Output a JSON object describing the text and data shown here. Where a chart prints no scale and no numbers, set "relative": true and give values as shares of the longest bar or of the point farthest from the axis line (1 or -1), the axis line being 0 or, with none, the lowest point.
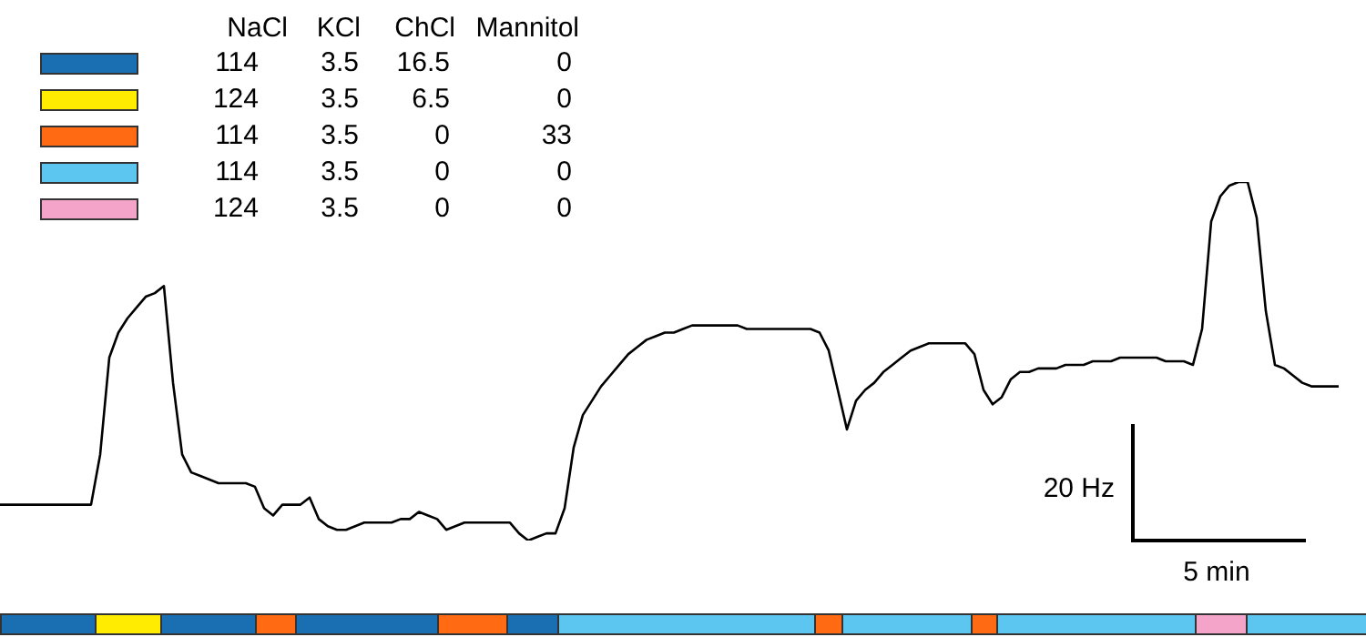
{
  "chart_data": {
    "type": "line",
    "relative": true,
    "categories": [
      null,
      null,
      null,
      null,
      null,
      null,
      null,
      null,
      null,
      null,
      null,
      null,
      null,
      null,
      null,
      null,
      null,
      null,
      null,
      null,
      null,
      null,
      null,
      null,
      null,
      null,
      null,
      null,
      null,
      null,
      null,
      null,
      null,
      null,
      null,
      null,
      null,
      null,
      null,
      null,
      null,
      null,
      null,
      null,
      null,
      null,
      null,
      null,
      null,
      null,
      null,
      null,
      null,
      null,
      null,
      null,
      null,
      null,
      null,
      null,
      null,
      null,
      null,
      null,
      null,
      null,
      null,
      null,
      null,
      null,
      null,
      null,
      null,
      null,
      null,
      null,
      null,
      null,
      null,
      null,
      null,
      null,
      null,
      null,
      null,
      null,
      null,
      null,
      null,
      null,
      null,
      null,
      null,
      null,
      null,
      null,
      null,
      null,
      null,
      null,
      null,
      null,
      null,
      null,
      null,
      null,
      null,
      null,
      null,
      null,
      null,
      null,
      null,
      null,
      null,
      null,
      null,
      null,
      null,
      null,
      null,
      null,
      null,
      null,
      null,
      null,
      null,
      null,
      null,
      null,
      null,
      null,
      null,
      null,
      null,
      null,
      null,
      null,
      null,
      null,
      null,
      null,
      null,
      null,
      null,
      null,
      null,
      null
    ],
    "series": [
      {
        "color": "#000000",
        "values": [
          0.1,
          0.1,
          0.1,
          0.1,
          0.1,
          0.1,
          0.1,
          0.1,
          0.1,
          0.1,
          0.1,
          0.24,
          0.51,
          0.58,
          0.62,
          0.65,
          0.68,
          0.69,
          0.71,
          0.44,
          0.24,
          0.19,
          0.18,
          0.17,
          0.16,
          0.16,
          0.16,
          0.16,
          0.15,
          0.09,
          0.07,
          0.1,
          0.1,
          0.1,
          0.12,
          0.06,
          0.04,
          0.03,
          0.03,
          0.04,
          0.05,
          0.05,
          0.05,
          0.05,
          0.06,
          0.06,
          0.08,
          0.07,
          0.06,
          0.03,
          0.04,
          0.05,
          0.05,
          0.05,
          0.05,
          0.05,
          0.05,
          0.02,
          0,
          0.01,
          0.02,
          0.02,
          0.09,
          0.26,
          0.35,
          0.39,
          0.43,
          0.46,
          0.49,
          0.52,
          0.54,
          0.56,
          0.57,
          0.58,
          0.58,
          0.59,
          0.6,
          0.6,
          0.6,
          0.6,
          0.6,
          0.6,
          0.59,
          0.59,
          0.59,
          0.59,
          0.59,
          0.59,
          0.59,
          0.59,
          0.58,
          0.53,
          0.42,
          0.31,
          0.39,
          0.42,
          0.44,
          0.47,
          0.49,
          0.51,
          0.53,
          0.54,
          0.55,
          0.55,
          0.55,
          0.55,
          0.55,
          0.52,
          0.42,
          0.38,
          0.4,
          0.45,
          0.47,
          0.47,
          0.48,
          0.48,
          0.48,
          0.49,
          0.49,
          0.49,
          0.5,
          0.5,
          0.5,
          0.51,
          0.51,
          0.51,
          0.51,
          0.51,
          0.5,
          0.5,
          0.5,
          0.49,
          0.59,
          0.89,
          0.96,
          0.99,
          1,
          1,
          0.9,
          0.64,
          0.49,
          0.48,
          0.46,
          0.44,
          0.43,
          0.43,
          0.43,
          0.43
        ]
      }
    ],
    "annotations": [
      "NaCl",
      "KCl",
      "ChCl",
      "Mannitol",
      "114",
      "3.5",
      "16.5",
      "0",
      "124",
      "3.5",
      "6.5",
      "0",
      "114",
      "3.5",
      "0",
      "33",
      "114",
      "3.5",
      "0",
      "0",
      "124",
      "3.5",
      "0",
      "0",
      "20 Hz",
      "5 min"
    ]
  }
}
